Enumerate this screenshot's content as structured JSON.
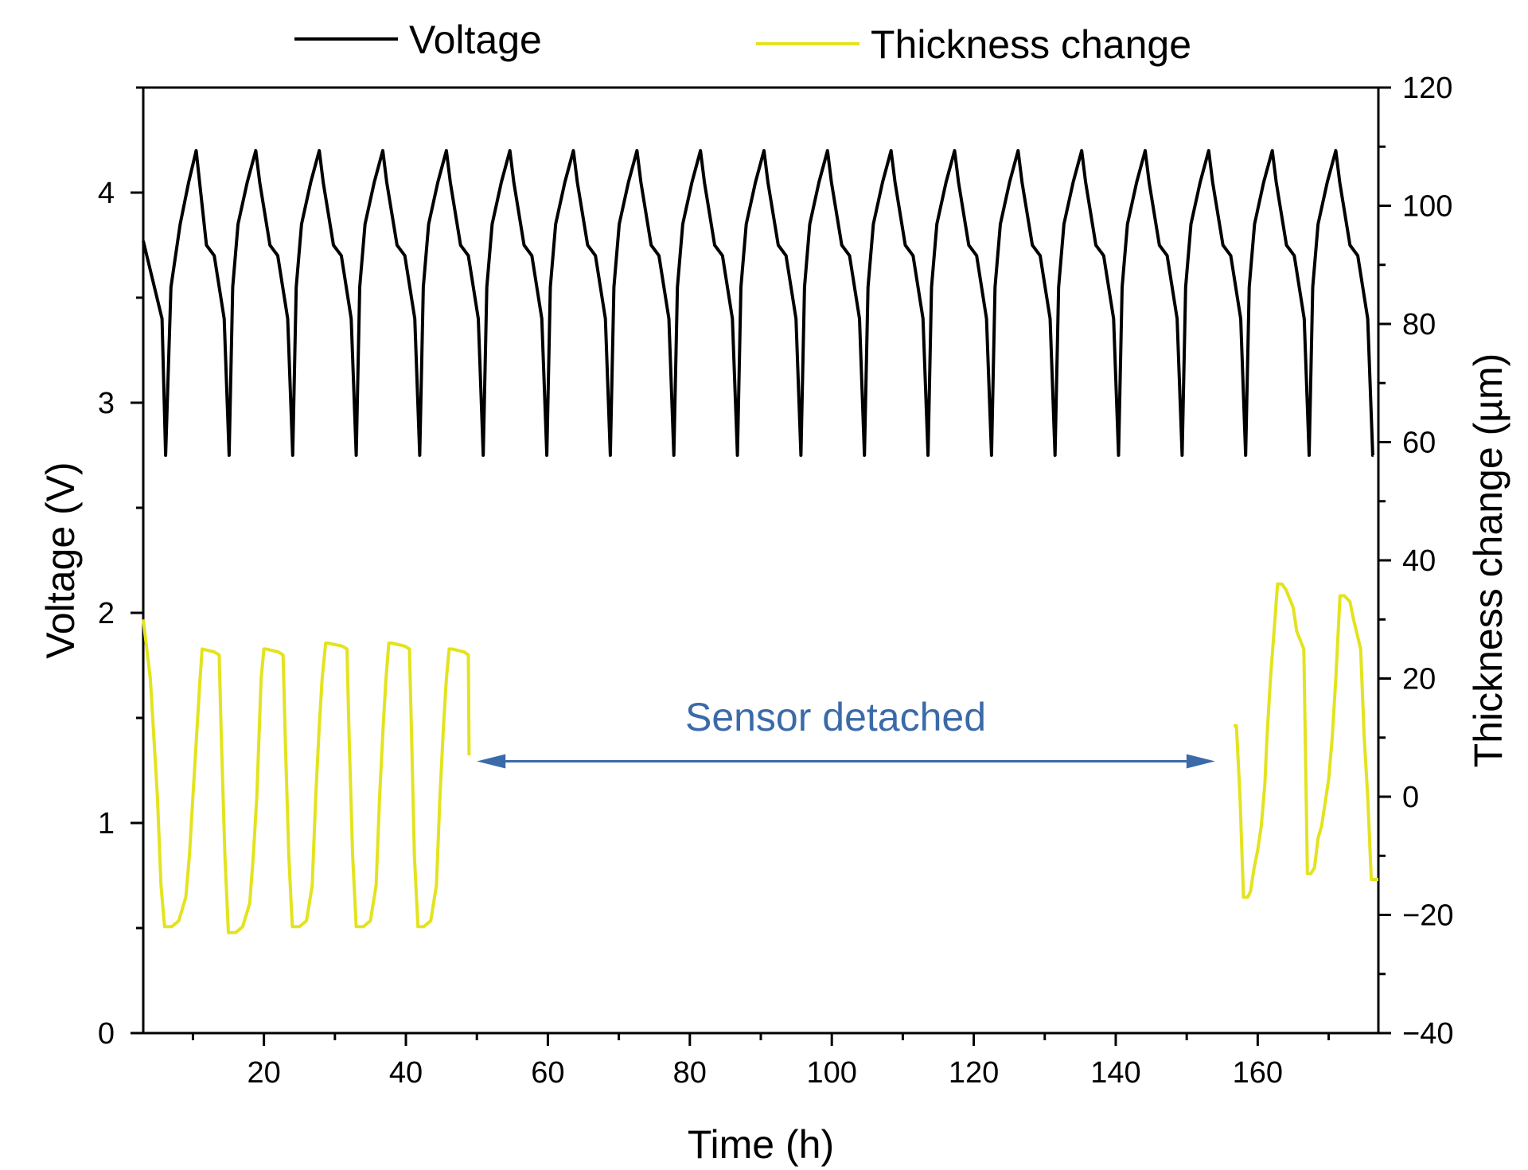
{
  "chart_data": {
    "type": "line",
    "xlabel": "Time (h)",
    "ylabel": "Voltage (V)",
    "y2label": "Thickness change (µm)",
    "xlim": [
      3,
      177
    ],
    "ylim": [
      0,
      4.5
    ],
    "y2lim": [
      -40,
      120
    ],
    "xticks": [
      20,
      40,
      60,
      80,
      100,
      120,
      140,
      160
    ],
    "yticks": [
      0,
      1,
      2,
      3,
      4
    ],
    "y2ticks": [
      -40,
      -20,
      0,
      20,
      40,
      60,
      80,
      100,
      120
    ],
    "xtick_labels": [
      "20",
      "40",
      "60",
      "80",
      "100",
      "120",
      "140",
      "160"
    ],
    "ytick_labels": [
      "0",
      "1",
      "2",
      "3",
      "4"
    ],
    "y2tick_labels": [
      "−40",
      "−20",
      "0",
      "20",
      "40",
      "60",
      "80",
      "100",
      "120"
    ],
    "grid": false,
    "legend_position": "top",
    "annotation": {
      "text": "Sensor detached",
      "arrow_x": [
        50,
        154
      ],
      "arrow_y2": 6,
      "color": "#3b6aa8"
    },
    "series": [
      {
        "name": "Voltage",
        "axis": "left",
        "color": "#000000",
        "cycle": {
          "start": 3,
          "period": 8.95,
          "count": 20,
          "peak_voltage": 4.2,
          "cutoff_voltage": 2.75,
          "rest_voltage": 3.55,
          "start_voltage": 3.77
        },
        "x": [
          3,
          5.65,
          6.15,
          6.9,
          8.2,
          9.4,
          10.45,
          11.9,
          13.0,
          14.4,
          15.1,
          15.6,
          16.35,
          17.65,
          18.85,
          19.4,
          20.85,
          21.95,
          23.35,
          24.05,
          24.55,
          25.3,
          26.6,
          27.8,
          28.35,
          29.8,
          30.9,
          32.3,
          33.0,
          33.5,
          34.25,
          35.55,
          36.75,
          37.3,
          38.75,
          39.85,
          41.25,
          41.95,
          42.45,
          43.2,
          44.5,
          45.7,
          46.25,
          47.7,
          48.8,
          50.2,
          50.9,
          51.4,
          52.15,
          53.45,
          54.65,
          55.2,
          56.65,
          57.75,
          59.15,
          59.85,
          60.35,
          61.1,
          62.4,
          63.6,
          64.15,
          65.6,
          66.7,
          68.1,
          68.8,
          69.3,
          70.05,
          71.35,
          72.55,
          73.1,
          74.55,
          75.65,
          77.05,
          77.75,
          78.25,
          79.0,
          80.3,
          81.5,
          82.05,
          83.5,
          84.6,
          86.0,
          86.7,
          87.2,
          87.95,
          89.25,
          90.45,
          91.0,
          92.45,
          93.55,
          94.95,
          95.65,
          96.15,
          96.9,
          98.2,
          99.4,
          99.95,
          101.4,
          102.5,
          103.9,
          104.6,
          105.1,
          105.85,
          107.15,
          108.35,
          108.9,
          110.35,
          111.45,
          112.85,
          113.55,
          114.05,
          114.8,
          116.1,
          117.3,
          117.85,
          119.3,
          120.4,
          121.8,
          122.5,
          123.0,
          123.75,
          125.05,
          126.25,
          126.8,
          128.25,
          129.35,
          130.75,
          131.45,
          131.95,
          132.7,
          134.0,
          135.2,
          135.75,
          137.2,
          138.3,
          139.7,
          140.4,
          140.9,
          141.65,
          142.95,
          144.15,
          144.7,
          146.15,
          147.25,
          148.65,
          149.35,
          149.85,
          150.6,
          151.9,
          153.1,
          153.65,
          155.1,
          156.2,
          157.6,
          158.3,
          158.8,
          159.55,
          160.85,
          162.05,
          162.6,
          164.05,
          165.15,
          166.55,
          167.25,
          167.75,
          168.5,
          169.8,
          171.0,
          171.55,
          173.0,
          174.1,
          175.5,
          176.2,
          176.3
        ],
        "values": [
          3.77,
          3.4,
          2.75,
          3.55,
          3.85,
          4.05,
          4.2,
          3.75,
          3.7,
          3.4,
          2.75,
          3.55,
          3.85,
          4.05,
          4.2,
          4.05,
          3.75,
          3.7,
          3.4,
          2.75,
          3.55,
          3.85,
          4.05,
          4.2,
          4.05,
          3.75,
          3.7,
          3.4,
          2.75,
          3.55,
          3.85,
          4.05,
          4.2,
          4.05,
          3.75,
          3.7,
          3.4,
          2.75,
          3.55,
          3.85,
          4.05,
          4.2,
          4.05,
          3.75,
          3.7,
          3.4,
          2.75,
          3.55,
          3.85,
          4.05,
          4.2,
          4.05,
          3.75,
          3.7,
          3.4,
          2.75,
          3.55,
          3.85,
          4.05,
          4.2,
          4.05,
          3.75,
          3.7,
          3.4,
          2.75,
          3.55,
          3.85,
          4.05,
          4.2,
          4.05,
          3.75,
          3.7,
          3.4,
          2.75,
          3.55,
          3.85,
          4.05,
          4.2,
          4.05,
          3.75,
          3.7,
          3.4,
          2.75,
          3.55,
          3.85,
          4.05,
          4.2,
          4.05,
          3.75,
          3.7,
          3.4,
          2.75,
          3.55,
          3.85,
          4.05,
          4.2,
          4.05,
          3.75,
          3.7,
          3.4,
          2.75,
          3.55,
          3.85,
          4.05,
          4.2,
          4.05,
          3.75,
          3.7,
          3.4,
          2.75,
          3.55,
          3.85,
          4.05,
          4.2,
          4.05,
          3.75,
          3.7,
          3.4,
          2.75,
          3.55,
          3.85,
          4.05,
          4.2,
          4.05,
          3.75,
          3.7,
          3.4,
          2.75,
          3.55,
          3.85,
          4.05,
          4.2,
          4.05,
          3.75,
          3.7,
          3.4,
          2.75,
          3.55,
          3.85,
          4.05,
          4.2,
          4.05,
          3.75,
          3.7,
          3.4,
          2.75,
          3.55,
          3.85,
          4.05,
          4.2,
          4.05,
          3.75,
          3.7,
          3.4,
          2.75,
          3.55,
          3.85,
          4.05,
          4.2,
          4.05,
          3.75,
          3.7,
          3.4,
          2.75,
          3.55,
          3.85,
          4.05,
          4.2,
          4.05,
          3.75,
          3.7,
          3.4,
          2.75,
          2.75
        ]
      },
      {
        "name": "Thickness change",
        "axis": "right",
        "color": "#e3e31f",
        "segments": [
          {
            "x": [
              3.0,
              4.0,
              5.0,
              5.5,
              6.0,
              7.0,
              8.0,
              9.0,
              9.5,
              10.0,
              10.5,
              11.0,
              11.3,
              13.0,
              13.7,
              14.0,
              14.5,
              15.0,
              16.0,
              17.0,
              18.0,
              18.5,
              19.0,
              19.3,
              19.6,
              20.0,
              20.3,
              22.0,
              22.7,
              23.0,
              23.5,
              24.0,
              25.0,
              26.0,
              26.8,
              27.3,
              27.8,
              28.2,
              28.7,
              29.0,
              31.0,
              31.7,
              32.0,
              32.5,
              33.0,
              34.0,
              35.0,
              35.8,
              36.3,
              36.8,
              37.2,
              37.6,
              38.0,
              39.8,
              40.5,
              40.8,
              41.2,
              41.7,
              42.5,
              43.5,
              44.3,
              44.8,
              45.3,
              45.7,
              46.1,
              46.5,
              48.2,
              48.8,
              48.9
            ],
            "values": [
              30,
              20,
              0,
              -15,
              -22,
              -22,
              -21,
              -17,
              -10,
              0,
              10,
              20,
              25,
              24.5,
              24,
              10,
              -10,
              -23,
              -23,
              -22,
              -18,
              -10,
              0,
              10,
              20,
              25,
              25,
              24.5,
              24,
              10,
              -10,
              -22,
              -22,
              -21,
              -15,
              0,
              12,
              20,
              26,
              26,
              25.5,
              25,
              10,
              -10,
              -22,
              -22,
              -21,
              -15,
              0,
              12,
              20,
              26,
              26,
              25.5,
              25,
              10,
              -10,
              -22,
              -22,
              -21,
              -15,
              0,
              12,
              20,
              25,
              25,
              24.5,
              24,
              7
            ]
          },
          {
            "x": [
              156.6,
              157.0,
              157.5,
              158.0,
              158.6,
              159.0,
              159.5,
              160.0,
              160.5,
              161.0,
              161.3,
              161.8,
              162.3,
              162.8,
              163.4,
              164.0,
              165.0,
              165.5,
              166.5,
              167.0,
              167.5,
              168.0,
              168.5,
              169.0,
              170.0,
              170.5,
              171.0,
              171.6,
              172.2,
              173.0,
              173.5,
              174.5,
              175.0,
              175.5,
              176.0,
              176.5,
              177.0
            ],
            "values": [
              12,
              12,
              0,
              -17,
              -17,
              -16,
              -12,
              -9,
              -5,
              2,
              10,
              20,
              28,
              36,
              36,
              35,
              32,
              28,
              25,
              -13,
              -13,
              -12,
              -7,
              -5,
              3,
              10,
              20,
              34,
              34,
              33,
              30,
              25,
              10,
              0,
              -14,
              -14,
              -14
            ]
          }
        ]
      }
    ]
  }
}
